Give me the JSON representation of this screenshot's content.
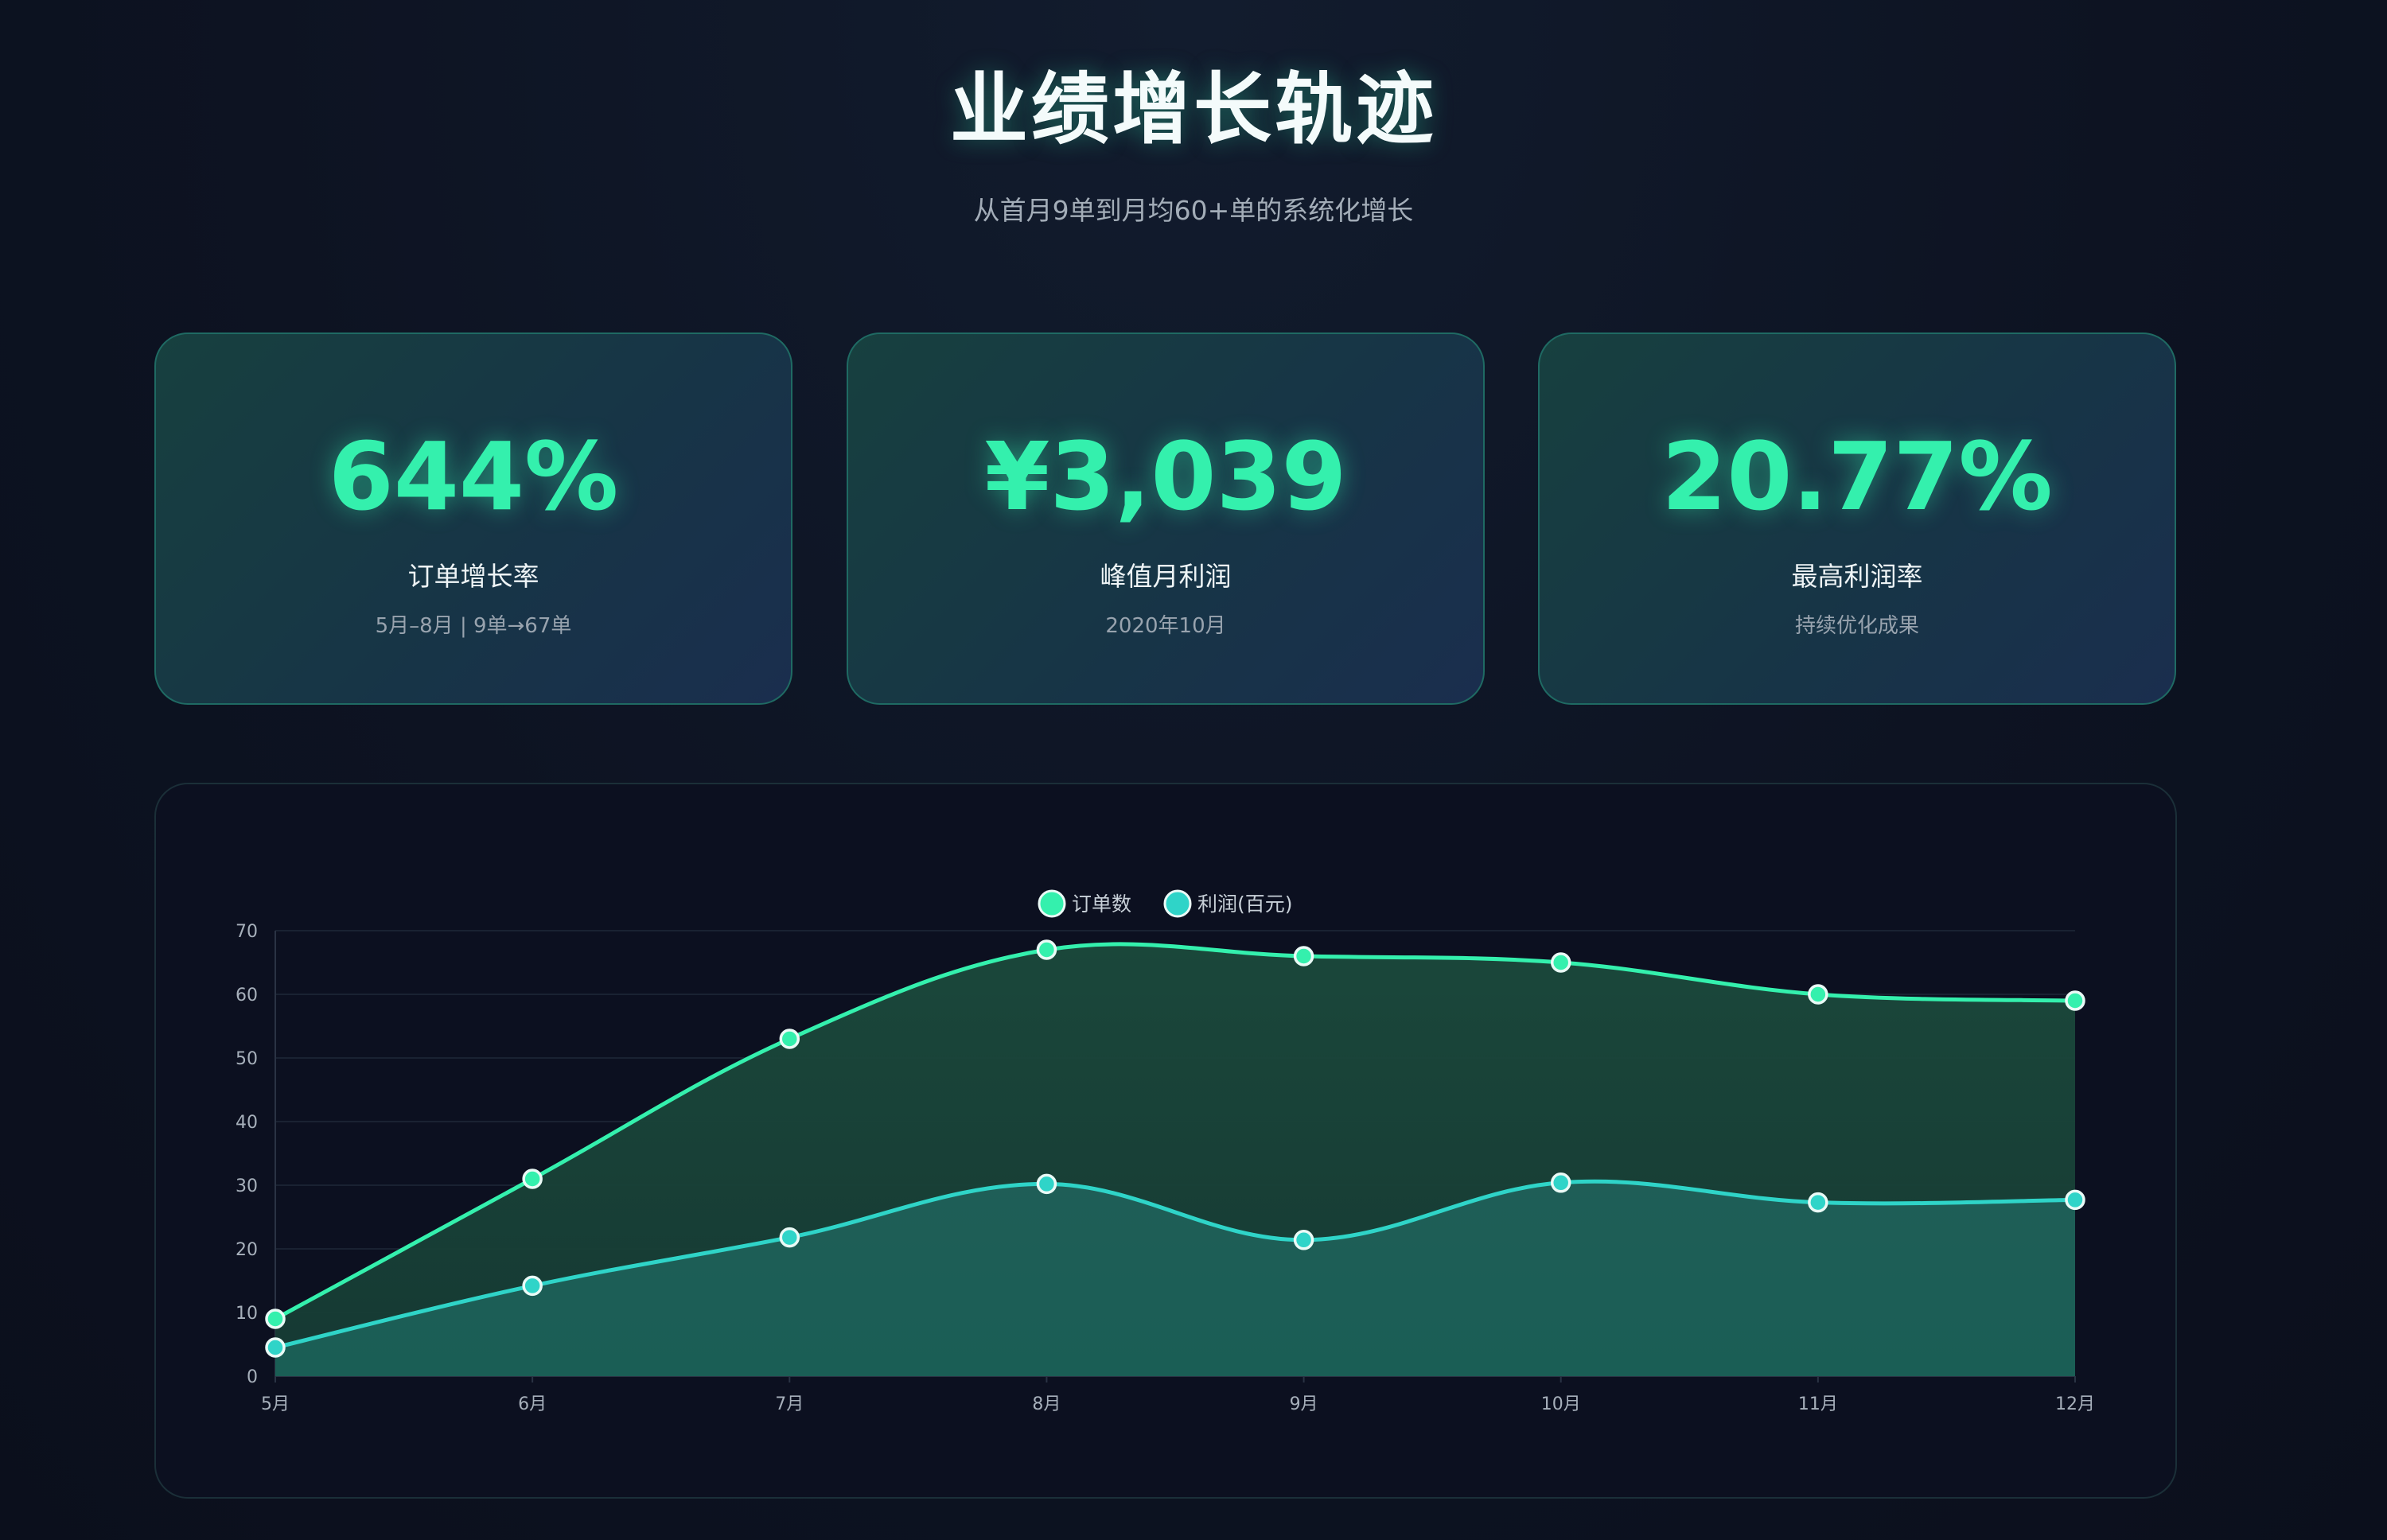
{
  "header": {
    "title": "业绩增长轨迹",
    "subtitle": "从首月9单到月均60+单的系统化增长"
  },
  "stats": [
    {
      "value": "644%",
      "label": "订单增长率",
      "note": "5月–8月 | 9单→67单"
    },
    {
      "value": "¥3,039",
      "label": "峰值月利润",
      "note": "2020年10月"
    },
    {
      "value": "20.77%",
      "label": "最高利润率",
      "note": "持续优化成果"
    }
  ],
  "colors": {
    "accent": "#34f0ad",
    "series_orders": "#34f0ad",
    "series_profit": "#2fd4c8",
    "card_border": "#1f6a63"
  },
  "chart_data": {
    "type": "area",
    "title": "",
    "xlabel": "",
    "ylabel": "",
    "categories": [
      "5月",
      "6月",
      "7月",
      "8月",
      "9月",
      "10月",
      "11月",
      "12月"
    ],
    "series": [
      {
        "name": "订单数",
        "values": [
          9,
          31,
          53,
          67,
          66,
          65,
          60,
          59
        ]
      },
      {
        "name": "利润(百元)",
        "values": [
          4.5,
          14.2,
          21.8,
          30.2,
          21.4,
          30.4,
          27.3,
          27.7
        ]
      }
    ],
    "ylim": [
      0,
      70
    ],
    "yticks": [
      0,
      10,
      20,
      30,
      40,
      50,
      60,
      70
    ],
    "grid": true,
    "legend": "top-center"
  }
}
